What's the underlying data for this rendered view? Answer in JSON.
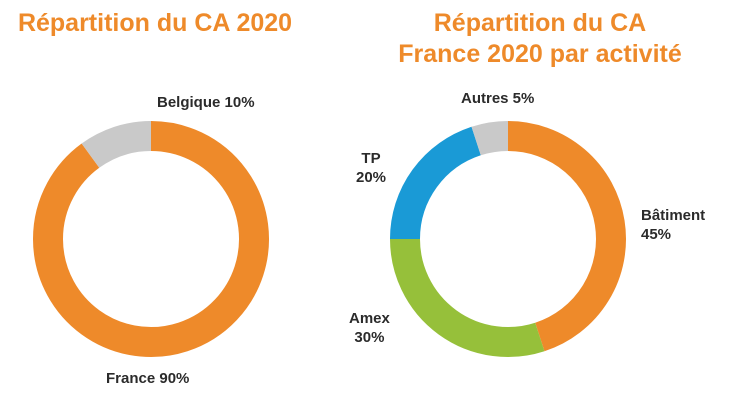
{
  "chart_data": [
    {
      "type": "pie",
      "variant": "donut",
      "title": "Répartition du CA 2020",
      "slices": [
        {
          "name": "France",
          "value": 90,
          "display": "France 90%",
          "color": "#ee8a2a"
        },
        {
          "name": "Belgique",
          "value": 10,
          "display": "Belgique 10%",
          "color": "#c9c9c9"
        }
      ]
    },
    {
      "type": "pie",
      "variant": "donut",
      "title_lines": [
        "Répartition du CA",
        "France 2020 par activité"
      ],
      "slices": [
        {
          "name": "Bâtiment",
          "value": 45,
          "pct": "45%",
          "color": "#ee8a2a"
        },
        {
          "name": "Amex",
          "value": 30,
          "pct": "30%",
          "color": "#96c03a"
        },
        {
          "name": "TP",
          "value": 20,
          "pct": "20%",
          "color": "#1a9ad6"
        },
        {
          "name": "Autres",
          "value": 5,
          "pct": "5%",
          "color": "#c9c9c9",
          "display": "Autres 5%"
        }
      ]
    }
  ]
}
